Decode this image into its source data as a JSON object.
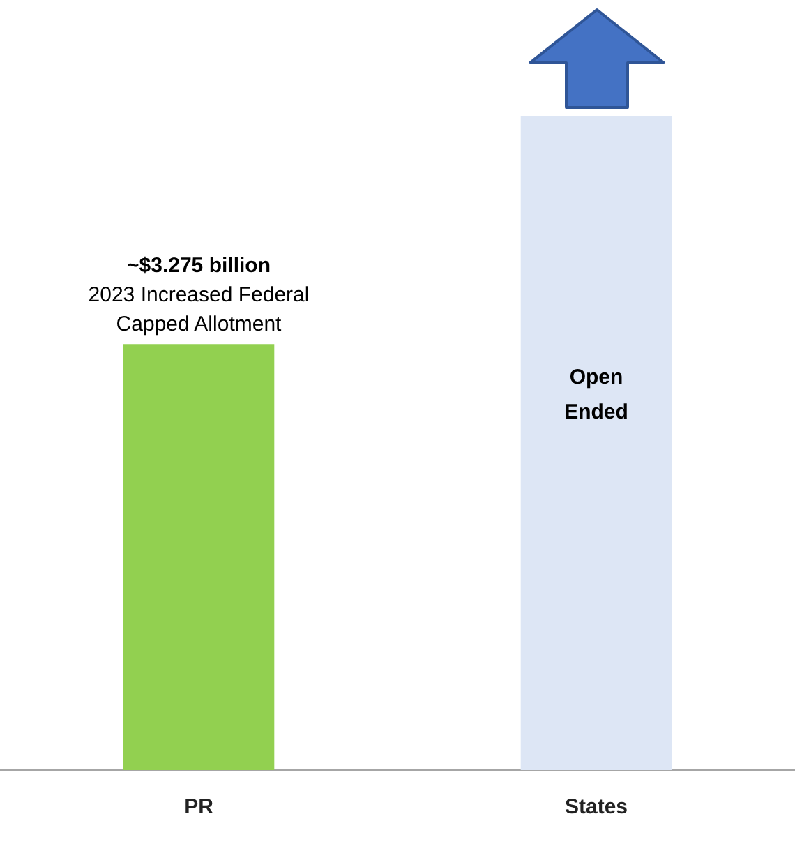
{
  "chart_data": {
    "type": "bar",
    "categories": [
      "PR",
      "States"
    ],
    "values": [
      3.275,
      5.03
    ],
    "ylim": [
      0,
      5.03
    ],
    "tick_labels": "x",
    "colors": [
      "#92d050",
      "#dde6f5"
    ],
    "value_labels": [
      "~$3.275 billion",
      "Open Ended"
    ],
    "annotations": [
      "2023 Increased Federal Capped Allotment"
    ],
    "grid": false,
    "legend": false
  }
}
